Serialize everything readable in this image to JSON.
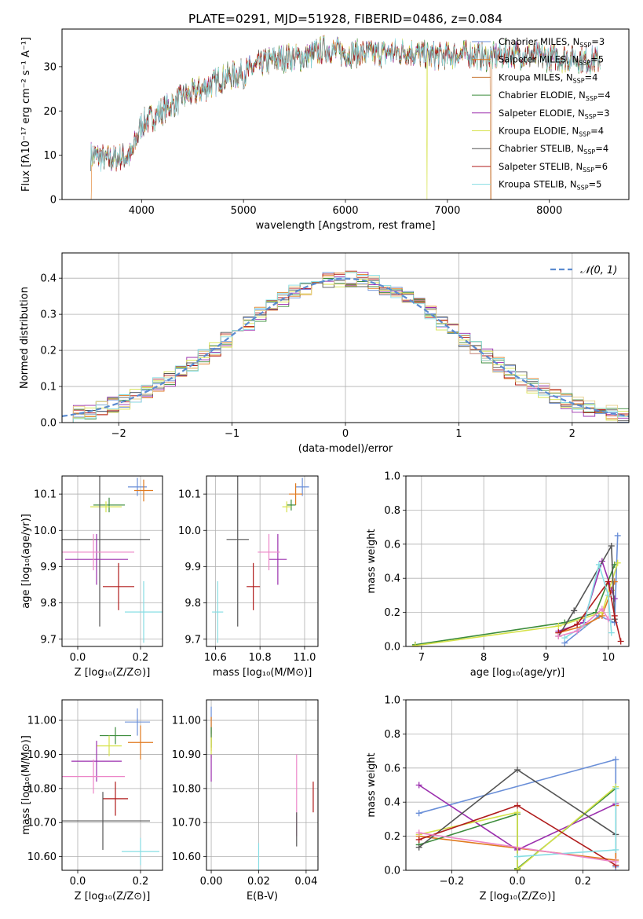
{
  "figure": {
    "title": "PLATE=0291, MJD=51928, FIBERID=0486, z=0.084",
    "colors": [
      "#6a8fd8",
      "#e07a1f",
      "#3c8c3c",
      "#9b2fae",
      "#d6e24a",
      "#555555",
      "#b01c1c",
      "#e8cf8a",
      "#86dde3",
      "#ec86c8",
      "#a0c83a",
      "#9a9a9a"
    ]
  },
  "chart_data": [
    {
      "name": "spectrum",
      "type": "line",
      "xlabel": "wavelength [Angstrom, rest frame]",
      "ylabel": "Flux [fλ10⁻¹⁷ erg cm⁻² s⁻¹ A⁻¹]",
      "xlim": [
        3220,
        8780
      ],
      "ylim": [
        0,
        38.5
      ],
      "xticks": [
        4000,
        5000,
        6000,
        7000,
        8000
      ],
      "yticks": [
        0,
        10,
        20,
        30
      ],
      "grid": false,
      "legend_position": "top-right",
      "continuum_x": [
        3500,
        3700,
        3900,
        4000,
        4200,
        4400,
        4600,
        4800,
        5000,
        5200,
        5400,
        5600,
        5800,
        6000,
        6200,
        6400,
        6600,
        6800,
        7000,
        7200,
        7400,
        7600,
        7800,
        8000,
        8200,
        8400,
        8500
      ],
      "continuum_y": [
        10,
        9,
        10,
        17,
        20,
        23,
        25,
        27.5,
        28.5,
        31,
        32,
        32,
        34,
        33,
        33,
        33,
        33.5,
        32.5,
        32.5,
        33,
        32,
        33,
        32.5,
        32,
        32,
        31.5,
        31.5
      ],
      "series": [
        {
          "name": "Chabrier MILES, N",
          "sub": "SSP",
          "n": "=3",
          "color": "#6a8fd8"
        },
        {
          "name": "Salpeter MILES, N",
          "sub": "SSP",
          "n": "=5",
          "color": "#e07a1f"
        },
        {
          "name": "Kroupa MILES, N",
          "sub": "SSP",
          "n": "=4",
          "color": "#c87533"
        },
        {
          "name": "Chabrier ELODIE, N",
          "sub": "SSP",
          "n": "=4",
          "color": "#3c8c3c"
        },
        {
          "name": "Salpeter ELODIE, N",
          "sub": "SSP",
          "n": "=3",
          "color": "#9b2fae"
        },
        {
          "name": "Kroupa ELODIE, N",
          "sub": "SSP",
          "n": "=4",
          "color": "#d6e24a"
        },
        {
          "name": "Chabrier STELIB, N",
          "sub": "SSP",
          "n": "=4",
          "color": "#555555"
        },
        {
          "name": "Salpeter STELIB, N",
          "sub": "SSP",
          "n": "=6",
          "color": "#b01c1c"
        },
        {
          "name": "Kroupa STELIB, N",
          "sub": "SSP",
          "n": "=5",
          "color": "#86dde3"
        }
      ]
    },
    {
      "name": "residuals",
      "type": "histogram",
      "xlabel": "(data-model)/error",
      "ylabel": "Normed distribution",
      "xlim": [
        -2.5,
        2.5
      ],
      "ylim": [
        0,
        0.47
      ],
      "xticks": [
        -2,
        -1,
        0,
        1,
        2
      ],
      "yticks": [
        0.0,
        0.1,
        0.2,
        0.3,
        0.4
      ],
      "grid": true,
      "bin_width": 0.1,
      "legend": "𝒩(0, 1)",
      "legend_position": "top-right",
      "gaussian": {
        "mean": 0,
        "sigma": 1,
        "color": "#5b8bd0"
      }
    },
    {
      "name": "age_vs_Z",
      "type": "scatter",
      "xlabel": "Z [log₁₀(Z/Z⊙)]",
      "ylabel": "age  [log₁₀(age/yr)]",
      "xlim": [
        -0.05,
        0.27
      ],
      "ylim": [
        9.68,
        10.15
      ],
      "xticks": [
        0.0,
        0.2
      ],
      "yticks": [
        9.7,
        9.8,
        9.9,
        10.0,
        10.1
      ],
      "grid": true,
      "points": [
        {
          "x": 0.19,
          "xerr": 0.03,
          "y": 10.12,
          "yerr": 0.025,
          "color": "#6a8fd8"
        },
        {
          "x": 0.21,
          "xerr": 0.03,
          "y": 10.11,
          "yerr": 0.03,
          "color": "#e07a1f"
        },
        {
          "x": 0.1,
          "xerr": 0.05,
          "y": 10.07,
          "yerr": 0.02,
          "color": "#3c8c3c"
        },
        {
          "x": 0.09,
          "xerr": 0.05,
          "y": 10.065,
          "yerr": 0.015,
          "color": "#d6e24a"
        },
        {
          "x": 0.07,
          "xerr": 0.16,
          "y": 9.975,
          "yerr": 0.24,
          "color": "#555555"
        },
        {
          "x": 0.06,
          "xerr": 0.1,
          "y": 9.92,
          "yerr": 0.07,
          "color": "#9b2fae"
        },
        {
          "x": 0.05,
          "xerr": 0.13,
          "y": 9.94,
          "yerr": 0.05,
          "color": "#ec86c8"
        },
        {
          "x": 0.13,
          "xerr": 0.05,
          "y": 9.845,
          "yerr": 0.065,
          "color": "#b01c1c"
        },
        {
          "x": 0.21,
          "xerr": 0.06,
          "y": 9.775,
          "yerr": 0.085,
          "color": "#86dde3"
        }
      ]
    },
    {
      "name": "age_vs_mass",
      "type": "scatter",
      "xlabel": "mass [log₁₀(M/M⊙)]",
      "ylabel": "",
      "xlim": [
        10.56,
        11.06
      ],
      "ylim": [
        9.68,
        10.15
      ],
      "xticks": [
        10.6,
        10.8,
        11.0
      ],
      "yticks": [
        9.7,
        9.8,
        9.9,
        10.0,
        10.1
      ],
      "grid": true,
      "points": [
        {
          "x": 10.99,
          "xerr": 0.03,
          "y": 10.12,
          "yerr": 0.025,
          "color": "#6a8fd8"
        },
        {
          "x": 10.96,
          "xerr": 0.03,
          "y": 10.1,
          "yerr": 0.03,
          "color": "#e07a1f"
        },
        {
          "x": 10.94,
          "xerr": 0.02,
          "y": 10.07,
          "yerr": 0.015,
          "color": "#3c8c3c"
        },
        {
          "x": 10.92,
          "xerr": 0.02,
          "y": 10.065,
          "yerr": 0.015,
          "color": "#d6e24a"
        },
        {
          "x": 10.7,
          "xerr": 0.05,
          "y": 9.975,
          "yerr": 0.24,
          "color": "#555555"
        },
        {
          "x": 10.88,
          "xerr": 0.04,
          "y": 9.92,
          "yerr": 0.07,
          "color": "#9b2fae"
        },
        {
          "x": 10.84,
          "xerr": 0.05,
          "y": 9.94,
          "yerr": 0.05,
          "color": "#ec86c8"
        },
        {
          "x": 10.77,
          "xerr": 0.03,
          "y": 9.845,
          "yerr": 0.065,
          "color": "#b01c1c"
        },
        {
          "x": 10.61,
          "xerr": 0.025,
          "y": 9.775,
          "yerr": 0.085,
          "color": "#86dde3"
        }
      ]
    },
    {
      "name": "mass_weight_vs_age",
      "type": "line",
      "xlabel": "age  [log₁₀(age/yr)]",
      "ylabel": "mass weight",
      "xlim": [
        6.75,
        10.33
      ],
      "ylim": [
        0.0,
        1.0
      ],
      "xticks": [
        7,
        8,
        9,
        10
      ],
      "yticks": [
        0.0,
        0.2,
        0.4,
        0.6,
        0.8,
        1.0
      ],
      "grid": true,
      "series": [
        {
          "color": "#6a8fd8",
          "x": [
            9.3,
            9.85,
            10.1,
            10.15
          ],
          "y": [
            0.02,
            0.18,
            0.14,
            0.65
          ]
        },
        {
          "color": "#e07a1f",
          "x": [
            9.2,
            9.6,
            9.9,
            10.05,
            10.1
          ],
          "y": [
            0.08,
            0.12,
            0.18,
            0.33,
            0.38
          ]
        },
        {
          "color": "#3c8c3c",
          "x": [
            6.9,
            9.3,
            9.8,
            10.1
          ],
          "y": [
            0.01,
            0.14,
            0.2,
            0.48
          ]
        },
        {
          "color": "#9b2fae",
          "x": [
            9.2,
            9.6,
            9.9,
            10.1
          ],
          "y": [
            0.09,
            0.14,
            0.5,
            0.28
          ]
        },
        {
          "color": "#d6e24a",
          "x": [
            6.9,
            9.2,
            9.9,
            10.15
          ],
          "y": [
            0.005,
            0.12,
            0.2,
            0.49
          ]
        },
        {
          "color": "#555555",
          "x": [
            9.2,
            9.45,
            10.05,
            10.1
          ],
          "y": [
            0.06,
            0.21,
            0.59,
            0.16
          ]
        },
        {
          "color": "#b01c1c",
          "x": [
            9.2,
            9.5,
            10.0,
            10.1,
            10.2
          ],
          "y": [
            0.08,
            0.13,
            0.38,
            0.18,
            0.03
          ]
        },
        {
          "color": "#86dde3",
          "x": [
            9.3,
            9.6,
            9.85,
            10.0,
            10.05
          ],
          "y": [
            0.05,
            0.12,
            0.48,
            0.3,
            0.08
          ]
        },
        {
          "color": "#ec86c8",
          "x": [
            9.2,
            9.5,
            9.9,
            10.0
          ],
          "y": [
            0.06,
            0.09,
            0.22,
            0.16
          ]
        }
      ]
    },
    {
      "name": "mass_vs_Z",
      "type": "scatter",
      "xlabel": "Z [log₁₀(Z/Z⊙)]",
      "ylabel": "mass [log₁₀(M/M⊙)]",
      "xlim": [
        -0.05,
        0.27
      ],
      "ylim": [
        10.56,
        11.06
      ],
      "xticks": [
        0.0,
        0.2
      ],
      "yticks": [
        10.6,
        10.7,
        10.8,
        10.9,
        11.0
      ],
      "grid": true,
      "points": [
        {
          "x": 0.19,
          "xerr": 0.04,
          "y": 10.995,
          "yerr": 0.04,
          "color": "#6a8fd8"
        },
        {
          "x": 0.2,
          "xerr": 0.04,
          "y": 10.935,
          "yerr": 0.05,
          "color": "#e07a1f"
        },
        {
          "x": 0.12,
          "xerr": 0.05,
          "y": 10.955,
          "yerr": 0.025,
          "color": "#3c8c3c"
        },
        {
          "x": 0.1,
          "xerr": 0.04,
          "y": 10.925,
          "yerr": 0.03,
          "color": "#d6e24a"
        },
        {
          "x": 0.06,
          "xerr": 0.08,
          "y": 10.88,
          "yerr": 0.06,
          "color": "#9b2fae"
        },
        {
          "x": 0.05,
          "xerr": 0.1,
          "y": 10.835,
          "yerr": 0.05,
          "color": "#ec86c8"
        },
        {
          "x": 0.12,
          "xerr": 0.04,
          "y": 10.77,
          "yerr": 0.05,
          "color": "#b01c1c"
        },
        {
          "x": 0.08,
          "xerr": 0.15,
          "y": 10.705,
          "yerr": 0.085,
          "color": "#555555"
        },
        {
          "x": 0.2,
          "xerr": 0.06,
          "y": 10.615,
          "yerr": 0.04,
          "color": "#86dde3"
        }
      ]
    },
    {
      "name": "mass_vs_ebv",
      "type": "scatter",
      "xlabel": "E(B-V)",
      "ylabel": "",
      "xlim": [
        -0.002,
        0.045
      ],
      "ylim": [
        10.56,
        11.06
      ],
      "xticks": [
        0.0,
        0.02,
        0.04
      ],
      "yticks": [
        10.6,
        10.7,
        10.8,
        10.9,
        11.0
      ],
      "grid": true,
      "points": [
        {
          "x": 0.0,
          "xerr": 0,
          "y": 11.0,
          "yerr": 0.04,
          "color": "#6a8fd8"
        },
        {
          "x": 0.0,
          "xerr": 0,
          "y": 10.96,
          "yerr": 0.05,
          "color": "#e07a1f"
        },
        {
          "x": 0.0,
          "xerr": 0,
          "y": 10.95,
          "yerr": 0.03,
          "color": "#3c8c3c"
        },
        {
          "x": 0.0,
          "xerr": 0,
          "y": 10.92,
          "yerr": 0.03,
          "color": "#d6e24a"
        },
        {
          "x": 0.0,
          "xerr": 0,
          "y": 10.86,
          "yerr": 0.04,
          "color": "#9b2fae"
        },
        {
          "x": 0.036,
          "xerr": 0,
          "y": 10.78,
          "yerr": 0.12,
          "color": "#ec86c8"
        },
        {
          "x": 0.043,
          "xerr": 0,
          "y": 10.775,
          "yerr": 0.045,
          "color": "#b01c1c"
        },
        {
          "x": 0.036,
          "xerr": 0,
          "y": 10.68,
          "yerr": 0.05,
          "color": "#555555"
        },
        {
          "x": 0.02,
          "xerr": 0,
          "y": 10.6,
          "yerr": 0.04,
          "color": "#86dde3"
        }
      ]
    },
    {
      "name": "mass_weight_vs_Z",
      "type": "line",
      "xlabel": "Z [log₁₀(Z/Z⊙)]",
      "ylabel": "mass weight",
      "xlim": [
        -0.34,
        0.34
      ],
      "ylim": [
        0.0,
        1.0
      ],
      "xticks": [
        -0.2,
        0.0,
        0.2
      ],
      "yticks": [
        0.0,
        0.2,
        0.4,
        0.6,
        0.8,
        1.0
      ],
      "grid": true,
      "series": [
        {
          "color": "#6a8fd8",
          "x": [
            -0.3,
            0.3,
            0.3
          ],
          "y": [
            0.335,
            0.65,
            0.02
          ]
        },
        {
          "color": "#e07a1f",
          "x": [
            -0.3,
            0.0,
            0.3,
            0.3
          ],
          "y": [
            0.2,
            0.13,
            0.06,
            0.38
          ]
        },
        {
          "color": "#3c8c3c",
          "x": [
            -0.3,
            0.0,
            0.0,
            0.3
          ],
          "y": [
            0.15,
            0.33,
            0.01,
            0.48
          ]
        },
        {
          "color": "#9b2fae",
          "x": [
            -0.3,
            0.0,
            0.3
          ],
          "y": [
            0.5,
            0.12,
            0.39
          ]
        },
        {
          "color": "#d6e24a",
          "x": [
            -0.3,
            0.0,
            0.0,
            0.3
          ],
          "y": [
            0.21,
            0.34,
            0.005,
            0.49
          ]
        },
        {
          "color": "#555555",
          "x": [
            -0.3,
            0.0,
            0.3
          ],
          "y": [
            0.135,
            0.59,
            0.21
          ]
        },
        {
          "color": "#b01c1c",
          "x": [
            -0.3,
            0.0,
            0.3
          ],
          "y": [
            0.18,
            0.38,
            0.03
          ]
        },
        {
          "color": "#86dde3",
          "x": [
            0.0,
            0.3,
            0.3
          ],
          "y": [
            0.08,
            0.12,
            0.48
          ]
        },
        {
          "color": "#ec86c8",
          "x": [
            -0.3,
            0.3
          ],
          "y": [
            0.22,
            0.05
          ]
        }
      ]
    }
  ]
}
